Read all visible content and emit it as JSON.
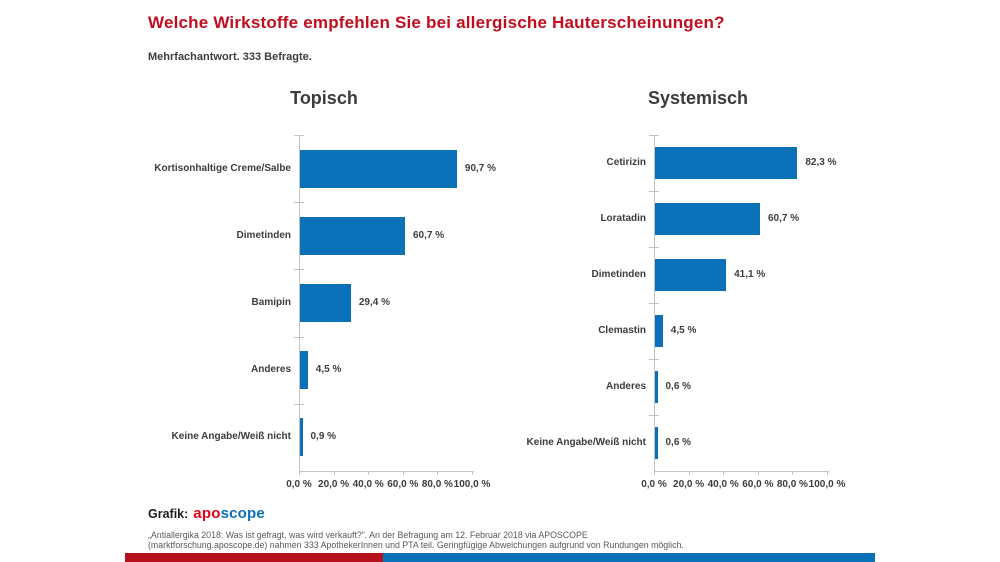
{
  "header": {
    "title": "Welche Wirkstoffe empfehlen Sie bei allergische Hauterscheinungen?",
    "subtitle": "Mehrfachantwort. 333 Befragte."
  },
  "chart_data": [
    {
      "type": "bar",
      "orientation": "horizontal",
      "title": "Topisch",
      "categories": [
        "Kortisonhaltige Creme/Salbe",
        "Dimetinden",
        "Bamipin",
        "Anderes",
        "Keine Angabe/Weiß nicht"
      ],
      "values": [
        90.7,
        60.7,
        29.4,
        4.5,
        0.9
      ],
      "value_labels": [
        "90,7 %",
        "60,7 %",
        "29,4 %",
        "4,5 %",
        "0,9 %"
      ],
      "x_ticks": [
        "0,0 %",
        "20,0 %",
        "40,0 %",
        "60,0 %",
        "80,0 %",
        "100,0 %"
      ],
      "xlim": [
        0,
        100
      ],
      "xlabel": "",
      "ylabel": "",
      "grid": false,
      "legend": false,
      "bar_color": "#0a70b8"
    },
    {
      "type": "bar",
      "orientation": "horizontal",
      "title": "Systemisch",
      "categories": [
        "Cetirizin",
        "Loratadin",
        "Dimetinden",
        "Clemastin",
        "Anderes",
        "Keine Angabe/Weiß nicht"
      ],
      "values": [
        82.3,
        60.7,
        41.1,
        4.5,
        0.6,
        0.6
      ],
      "value_labels": [
        "82,3 %",
        "60,7 %",
        "41,1 %",
        "4,5 %",
        "0,6 %",
        "0,6 %"
      ],
      "x_ticks": [
        "0,0 %",
        "20,0 %",
        "40,0 %",
        "60,0 %",
        "80,0 %",
        "100,0 %"
      ],
      "xlim": [
        0,
        100
      ],
      "xlabel": "",
      "ylabel": "",
      "grid": false,
      "legend": false,
      "bar_color": "#0a70b8"
    }
  ],
  "footer": {
    "credit_label": "Grafik:",
    "logo_part1": "apo",
    "logo_part2": "scope",
    "footnote_line1": "„Antiallergika 2018: Was ist gefragt, was wird verkauft?“. An der Befragung am 12. Februar 2018 via APOSCOPE",
    "footnote_line2": "(marktforschung.aposcope.de) nahmen 333 ApothekerInnen und PTA teil. Geringfügige Abweichungen aufgrund von Rundungen möglich."
  },
  "colors": {
    "title_red": "#c10d1e",
    "logo_red": "#e2001a",
    "bar_blue": "#0a70b8",
    "bottom_bar_red": "#b5121e",
    "bottom_bar_blue": "#0a70b8",
    "axis_gray": "#c4c4c4"
  }
}
